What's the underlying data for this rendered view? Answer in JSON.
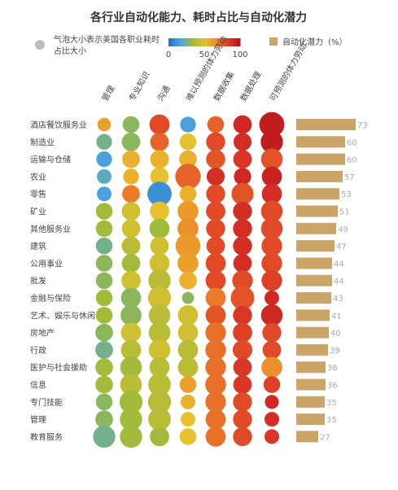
{
  "chart_data": {
    "type": "bubble-matrix",
    "title": "各行业自动化能力、耗时占比与自动化潜力",
    "size_legend": "气泡大小表示美国各职业耗时占比大小",
    "color_scale": {
      "ticks": [
        "0",
        "50",
        "100"
      ],
      "colors": [
        "#1f6fc5",
        "#4fa6dd",
        "#9aba3c",
        "#e8c12e",
        "#ee8a2a",
        "#dd3a26",
        "#b5101b"
      ]
    },
    "bar_legend": "自动化潜力（%）",
    "bar_color": "#cba568",
    "columns": [
      "管理",
      "专业知识",
      "沟通",
      "难以预测的体力劳动",
      "数据收集",
      "数据处理",
      "可预测的体力劳动"
    ],
    "rows": [
      {
        "name": "酒店餐饮服务业",
        "potential": 73,
        "cells": [
          [
            20,
            60
          ],
          [
            35,
            30
          ],
          [
            55,
            80
          ],
          [
            30,
            15
          ],
          [
            35,
            75
          ],
          [
            45,
            90
          ],
          [
            92,
            95
          ]
        ]
      },
      {
        "name": "制造业",
        "potential": 60,
        "cells": [
          [
            30,
            25
          ],
          [
            45,
            30
          ],
          [
            45,
            75
          ],
          [
            35,
            50
          ],
          [
            48,
            80
          ],
          [
            42,
            88
          ],
          [
            70,
            95
          ]
        ]
      },
      {
        "name": "运输与仓储",
        "potential": 60,
        "cells": [
          [
            30,
            15
          ],
          [
            40,
            55
          ],
          [
            45,
            55
          ],
          [
            40,
            55
          ],
          [
            48,
            78
          ],
          [
            45,
            85
          ],
          [
            65,
            78
          ]
        ]
      },
      {
        "name": "农业",
        "potential": 57,
        "cells": [
          [
            25,
            20
          ],
          [
            30,
            55
          ],
          [
            45,
            50
          ],
          [
            95,
            75
          ],
          [
            42,
            88
          ],
          [
            38,
            90
          ],
          [
            55,
            92
          ]
        ]
      },
      {
        "name": "零售",
        "potential": 53,
        "cells": [
          [
            25,
            15
          ],
          [
            40,
            70
          ],
          [
            85,
            10
          ],
          [
            35,
            55
          ],
          [
            48,
            80
          ],
          [
            68,
            78
          ],
          [
            55,
            88
          ]
        ]
      },
      {
        "name": "矿业",
        "potential": 51,
        "cells": [
          [
            35,
            35
          ],
          [
            45,
            45
          ],
          [
            50,
            50
          ],
          [
            60,
            62
          ],
          [
            50,
            80
          ],
          [
            48,
            88
          ],
          [
            65,
            80
          ]
        ]
      },
      {
        "name": "其他服务业",
        "potential": 49,
        "cells": [
          [
            35,
            35
          ],
          [
            45,
            45
          ],
          [
            55,
            35
          ],
          [
            60,
            65
          ],
          [
            48,
            80
          ],
          [
            48,
            88
          ],
          [
            65,
            80
          ]
        ]
      },
      {
        "name": "建筑",
        "potential": 47,
        "cells": [
          [
            35,
            25
          ],
          [
            45,
            40
          ],
          [
            45,
            45
          ],
          [
            90,
            62
          ],
          [
            45,
            80
          ],
          [
            48,
            88
          ],
          [
            58,
            80
          ]
        ]
      },
      {
        "name": "公用事业",
        "potential": 44,
        "cells": [
          [
            35,
            30
          ],
          [
            45,
            35
          ],
          [
            55,
            45
          ],
          [
            60,
            60
          ],
          [
            55,
            80
          ],
          [
            45,
            88
          ],
          [
            58,
            80
          ]
        ]
      },
      {
        "name": "批发",
        "potential": 44,
        "cells": [
          [
            35,
            30
          ],
          [
            50,
            45
          ],
          [
            70,
            40
          ],
          [
            40,
            55
          ],
          [
            55,
            80
          ],
          [
            58,
            80
          ],
          [
            58,
            82
          ]
        ]
      },
      {
        "name": "金融与保险",
        "potential": 43,
        "cells": [
          [
            35,
            35
          ],
          [
            55,
            30
          ],
          [
            75,
            45
          ],
          [
            15,
            30
          ],
          [
            55,
            70
          ],
          [
            80,
            78
          ],
          [
            25,
            90
          ]
        ]
      },
      {
        "name": "艺术、娱乐与休闲",
        "potential": 41,
        "cells": [
          [
            35,
            35
          ],
          [
            60,
            30
          ],
          [
            65,
            40
          ],
          [
            55,
            45
          ],
          [
            55,
            78
          ],
          [
            48,
            85
          ],
          [
            65,
            90
          ]
        ]
      },
      {
        "name": "房地产",
        "potential": 40,
        "cells": [
          [
            40,
            30
          ],
          [
            55,
            45
          ],
          [
            65,
            40
          ],
          [
            55,
            45
          ],
          [
            58,
            72
          ],
          [
            50,
            82
          ],
          [
            48,
            80
          ]
        ]
      },
      {
        "name": "行政",
        "potential": 39,
        "cells": [
          [
            40,
            25
          ],
          [
            55,
            40
          ],
          [
            65,
            45
          ],
          [
            55,
            40
          ],
          [
            58,
            72
          ],
          [
            52,
            80
          ],
          [
            45,
            80
          ]
        ]
      },
      {
        "name": "医护与社会援助",
        "potential": 36,
        "cells": [
          [
            40,
            35
          ],
          [
            65,
            35
          ],
          [
            55,
            40
          ],
          [
            55,
            40
          ],
          [
            58,
            72
          ],
          [
            45,
            85
          ],
          [
            60,
            65
          ]
        ]
      },
      {
        "name": "信息",
        "potential": 36,
        "cells": [
          [
            40,
            35
          ],
          [
            65,
            40
          ],
          [
            72,
            40
          ],
          [
            35,
            60
          ],
          [
            60,
            72
          ],
          [
            45,
            85
          ],
          [
            35,
            82
          ]
        ]
      },
      {
        "name": "专门技能",
        "potential": 35,
        "cells": [
          [
            35,
            30
          ],
          [
            75,
            35
          ],
          [
            75,
            40
          ],
          [
            25,
            55
          ],
          [
            58,
            72
          ],
          [
            48,
            80
          ],
          [
            22,
            90
          ]
        ]
      },
      {
        "name": "管理",
        "potential": 35,
        "cells": [
          [
            40,
            30
          ],
          [
            70,
            35
          ],
          [
            72,
            40
          ],
          [
            25,
            50
          ],
          [
            55,
            72
          ],
          [
            48,
            80
          ],
          [
            25,
            88
          ]
        ]
      },
      {
        "name": "教育服务",
        "potential": 27,
        "cells": [
          [
            70,
            25
          ],
          [
            70,
            35
          ],
          [
            50,
            35
          ],
          [
            35,
            50
          ],
          [
            55,
            72
          ],
          [
            48,
            80
          ],
          [
            25,
            85
          ]
        ]
      }
    ],
    "xlim_potential": [
      0,
      100
    ]
  }
}
